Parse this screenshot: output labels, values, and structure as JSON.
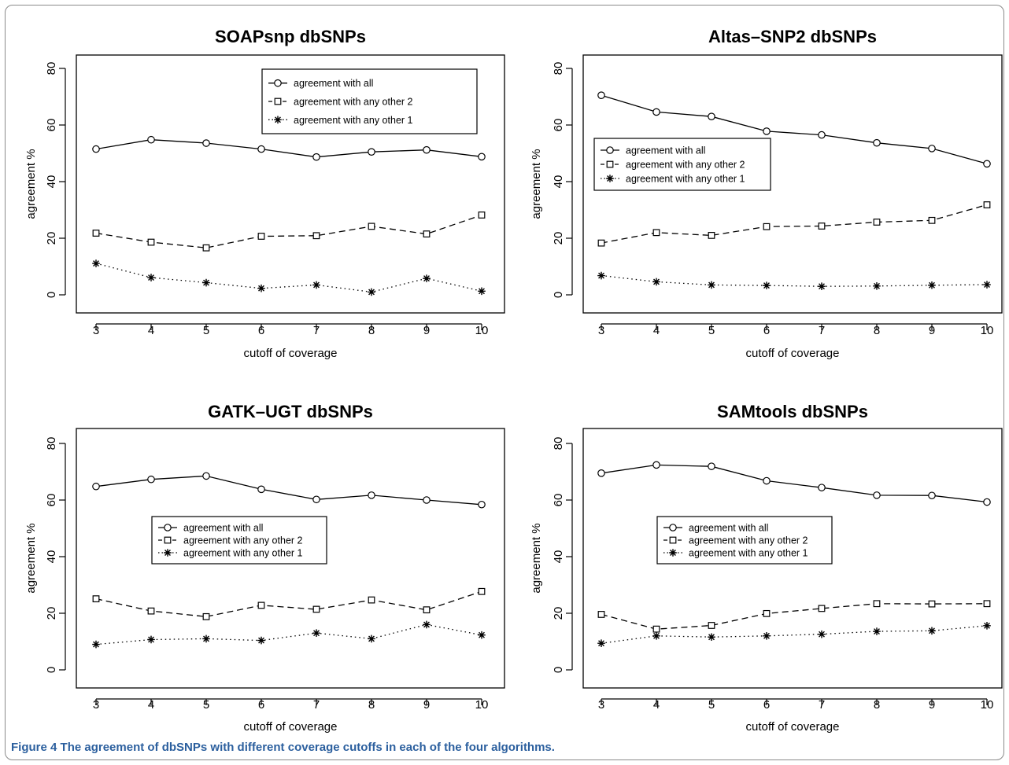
{
  "figure": {
    "caption_label": "Figure 4",
    "caption_text": " The agreement of dbSNPs with different coverage cutoffs in each of the four algorithms."
  },
  "chart_data": [
    {
      "type": "line",
      "title": "SOAPsnp dbSNPs",
      "xlabel": "cutoff of coverage",
      "ylabel": "agreement %",
      "x": [
        3,
        4,
        5,
        6,
        7,
        8,
        9,
        10
      ],
      "xlim": [
        3,
        10
      ],
      "ylim": [
        0,
        80
      ],
      "yticks": [
        0,
        20,
        40,
        60,
        80
      ],
      "legend_position": "top-right",
      "series": [
        {
          "name": "agreement with all",
          "marker": "circle",
          "line": "solid",
          "values": [
            51.5,
            54.8,
            53.6,
            51.5,
            48.7,
            50.5,
            51.2,
            48.8
          ]
        },
        {
          "name": "agreement with any other 2",
          "marker": "square",
          "line": "dashed",
          "values": [
            21.8,
            18.6,
            16.6,
            20.7,
            20.9,
            24.2,
            21.5,
            28.2
          ]
        },
        {
          "name": "agreement with any other 1",
          "marker": "asterisk",
          "line": "dotted",
          "values": [
            11.1,
            6.1,
            4.3,
            2.3,
            3.5,
            1.0,
            5.8,
            1.3
          ]
        }
      ]
    },
    {
      "type": "line",
      "title": "Altas–SNP2 dbSNPs",
      "xlabel": "cutoff of coverage",
      "ylabel": "agreement %",
      "x": [
        3,
        4,
        5,
        6,
        7,
        8,
        9,
        10
      ],
      "xlim": [
        3,
        10
      ],
      "ylim": [
        0,
        80
      ],
      "yticks": [
        0,
        20,
        40,
        60,
        80
      ],
      "legend_position": "middle-left",
      "series": [
        {
          "name": "agreement with all",
          "marker": "circle",
          "line": "solid",
          "values": [
            70.5,
            64.6,
            63.0,
            57.8,
            56.5,
            53.7,
            51.7,
            46.3
          ]
        },
        {
          "name": "agreement with any other 2",
          "marker": "square",
          "line": "dashed",
          "values": [
            18.3,
            22.0,
            21.0,
            24.1,
            24.3,
            25.7,
            26.3,
            31.8
          ]
        },
        {
          "name": "agreement with any other 1",
          "marker": "asterisk",
          "line": "dotted",
          "values": [
            6.8,
            4.6,
            3.5,
            3.3,
            3.0,
            3.1,
            3.4,
            3.6
          ]
        }
      ]
    },
    {
      "type": "line",
      "title": "GATK–UGT dbSNPs",
      "xlabel": "cutoff of coverage",
      "ylabel": "agreement %",
      "x": [
        3,
        4,
        5,
        6,
        7,
        8,
        9,
        10
      ],
      "xlim": [
        3,
        10
      ],
      "ylim": [
        0,
        80
      ],
      "yticks": [
        0,
        20,
        40,
        60,
        80
      ],
      "legend_position": "middle-center",
      "series": [
        {
          "name": "agreement with all",
          "marker": "circle",
          "line": "solid",
          "values": [
            64.8,
            67.3,
            68.5,
            63.8,
            60.2,
            61.7,
            60.0,
            58.4
          ]
        },
        {
          "name": "agreement with any other 2",
          "marker": "square",
          "line": "dashed",
          "values": [
            25.1,
            20.8,
            18.8,
            22.8,
            21.4,
            24.7,
            21.2,
            27.7
          ]
        },
        {
          "name": "agreement with any other 1",
          "marker": "asterisk",
          "line": "dotted",
          "values": [
            9.0,
            10.7,
            11.0,
            10.4,
            13.0,
            11.0,
            16.0,
            12.3
          ]
        }
      ]
    },
    {
      "type": "line",
      "title": "SAMtools dbSNPs",
      "xlabel": "cutoff of coverage",
      "ylabel": "agreement %",
      "x": [
        3,
        4,
        5,
        6,
        7,
        8,
        9,
        10
      ],
      "xlim": [
        3,
        10
      ],
      "ylim": [
        0,
        80
      ],
      "yticks": [
        0,
        20,
        40,
        60,
        80
      ],
      "legend_position": "middle-center",
      "series": [
        {
          "name": "agreement with all",
          "marker": "circle",
          "line": "solid",
          "values": [
            69.5,
            72.4,
            71.9,
            66.8,
            64.4,
            61.7,
            61.6,
            59.3
          ]
        },
        {
          "name": "agreement with any other 2",
          "marker": "square",
          "line": "dashed",
          "values": [
            19.6,
            14.4,
            15.7,
            19.9,
            21.7,
            23.4,
            23.3,
            23.4
          ]
        },
        {
          "name": "agreement with any other 1",
          "marker": "asterisk",
          "line": "dotted",
          "values": [
            9.4,
            12.0,
            11.6,
            12.0,
            12.6,
            13.6,
            13.8,
            15.6
          ]
        }
      ]
    }
  ]
}
